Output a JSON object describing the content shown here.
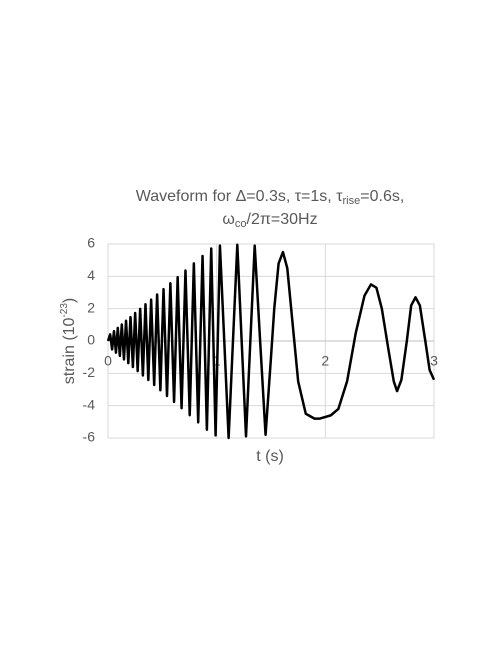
{
  "chart_data": {
    "type": "line",
    "title": {
      "line1": [
        "Waveform for Δ=0.3s, τ=1s, τ",
        "rise",
        "=0.6s,"
      ],
      "line2": [
        "ω",
        "co",
        "/2π=30Hz"
      ]
    },
    "x_label": "t (s)",
    "y_label": [
      "strain (10",
      "-23",
      ")"
    ],
    "xlim": [
      0,
      3
    ],
    "xticks": [
      0,
      1,
      2,
      3
    ],
    "ylim": [
      -6,
      6
    ],
    "yticks": [
      -6,
      -4,
      -2,
      0,
      2,
      4,
      6
    ],
    "grid": true,
    "series": [
      {
        "color": "#000000",
        "x": [
          0,
          0.02,
          0.038,
          0.055,
          0.073,
          0.09,
          0.109,
          0.127,
          0.147,
          0.166,
          0.187,
          0.207,
          0.229,
          0.25,
          0.273,
          0.296,
          0.321,
          0.345,
          0.371,
          0.397,
          0.425,
          0.452,
          0.482,
          0.511,
          0.543,
          0.574,
          0.608,
          0.641,
          0.677,
          0.713,
          0.752,
          0.79,
          0.83,
          0.87,
          0.91,
          0.95,
          0.99,
          1.03,
          1.07,
          1.11,
          1.15,
          1.19,
          1.23,
          1.27,
          1.31,
          1.35,
          1.4,
          1.45,
          1.5,
          1.53,
          1.57,
          1.61,
          1.65,
          1.7,
          1.75,
          1.82,
          1.9,
          1.95,
          2.05,
          2.12,
          2.2,
          2.28,
          2.36,
          2.42,
          2.47,
          2.52,
          2.58,
          2.63,
          2.66,
          2.7,
          2.75,
          2.79,
          2.83,
          2.87,
          2.92,
          2.96,
          3.0
        ],
        "values": [
          0,
          0.41,
          -0.52,
          0.61,
          -0.72,
          0.81,
          -0.92,
          1.02,
          -1.14,
          1.25,
          -1.37,
          1.48,
          -1.61,
          1.73,
          -1.86,
          1.99,
          -2.13,
          2.27,
          -2.41,
          2.56,
          -2.72,
          2.88,
          -3.05,
          3.21,
          -3.4,
          3.57,
          -3.77,
          3.95,
          -4.16,
          4.36,
          -4.59,
          4.8,
          -5.03,
          5.26,
          -5.49,
          5.72,
          -5.84,
          5.9,
          0,
          -6,
          0,
          5.95,
          0,
          -5.9,
          0,
          5.9,
          0,
          -5.8,
          -1,
          2,
          4.8,
          5.5,
          4.5,
          1,
          -2.5,
          -4.5,
          -4.8,
          -4.8,
          -4.6,
          -4.2,
          -2.5,
          0.5,
          2.8,
          3.5,
          3.3,
          2,
          -0.5,
          -2.5,
          -3.1,
          -2.4,
          0,
          2.2,
          2.7,
          2.2,
          0,
          -1.8,
          -2.4
        ]
      }
    ]
  }
}
